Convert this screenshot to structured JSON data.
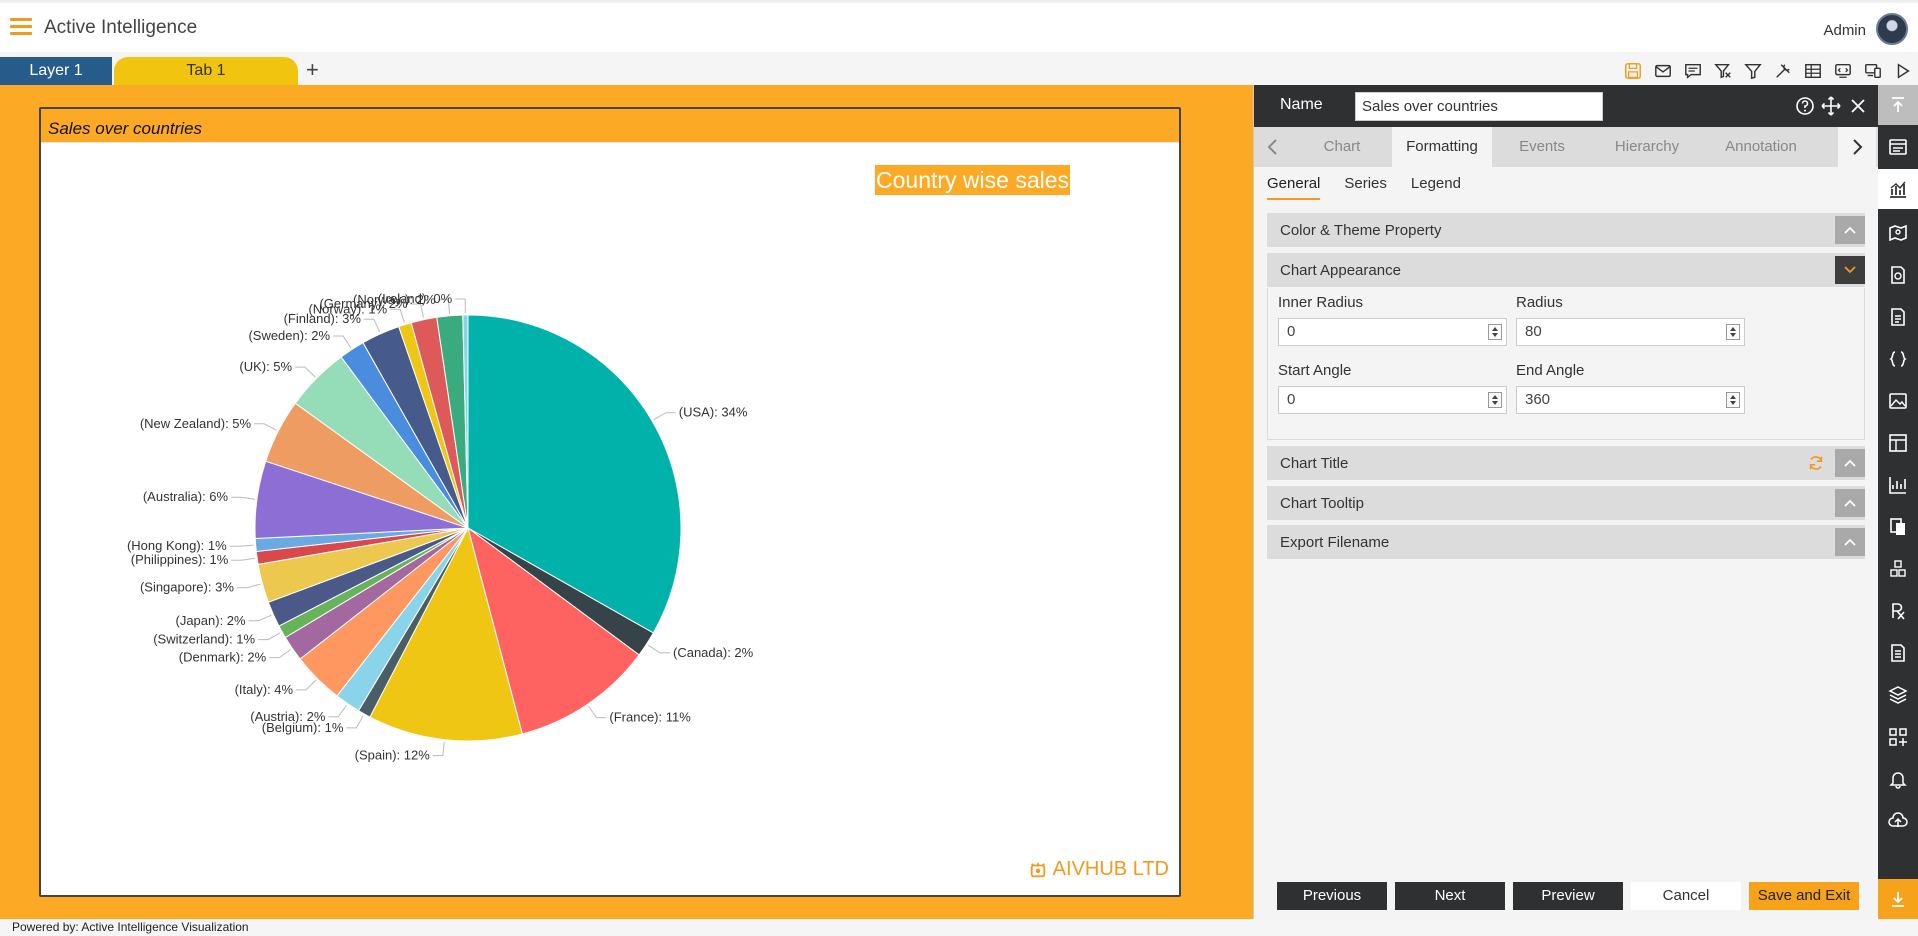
{
  "app": {
    "title": "Active Intelligence",
    "user": "Admin"
  },
  "tabs": {
    "layer": "Layer 1",
    "sheet": "Tab 1",
    "add": "+"
  },
  "toolbar_icons": [
    "save-icon",
    "mail-icon",
    "comment-icon",
    "clear-filter-icon",
    "filter-icon",
    "tools-icon",
    "table-icon",
    "embed-icon",
    "devices-icon",
    "play-icon"
  ],
  "card": {
    "header": "Sales over countries",
    "chart_title": "Country wise sales",
    "brand": "AIVHUB LTD"
  },
  "chart_data": {
    "type": "pie",
    "title": "Country wise sales",
    "slices": [
      {
        "label": "(USA): 34%",
        "value": 34,
        "color": "#00b2a9"
      },
      {
        "label": "(Canada): 2%",
        "value": 2,
        "color": "#36444a"
      },
      {
        "label": "(France): 11%",
        "value": 11,
        "color": "#fe6361"
      },
      {
        "label": "(Spain): 12%",
        "value": 12,
        "color": "#f0c614"
      },
      {
        "label": "(Belgium): 1%",
        "value": 1,
        "color": "#4b5e66"
      },
      {
        "label": "(Austria): 2%",
        "value": 2,
        "color": "#8ad4ea"
      },
      {
        "label": "(Italy): 4%",
        "value": 4,
        "color": "#fe9860"
      },
      {
        "label": "(Denmark): 2%",
        "value": 2,
        "color": "#a3689f"
      },
      {
        "label": "(Switzerland): 1%",
        "value": 1,
        "color": "#67b359"
      },
      {
        "label": "(Japan): 2%",
        "value": 2,
        "color": "#4a5987"
      },
      {
        "label": "(Singapore): 3%",
        "value": 3,
        "color": "#ecc84e"
      },
      {
        "label": "(Philippines): 1%",
        "value": 1,
        "color": "#d9484c"
      },
      {
        "label": "(Hong Kong): 1%",
        "value": 1,
        "color": "#6ba9e2"
      },
      {
        "label": "(Australia): 6%",
        "value": 6,
        "color": "#8c6ed4"
      },
      {
        "label": "(New Zealand): 5%",
        "value": 5,
        "color": "#ee9c61"
      },
      {
        "label": "(UK): 5%",
        "value": 5,
        "color": "#95dcb8"
      },
      {
        "label": "(Sweden): 2%",
        "value": 2,
        "color": "#4a8ddf"
      },
      {
        "label": "(Finland): 3%",
        "value": 3,
        "color": "#465a8c"
      },
      {
        "label": "(Norway): 1%",
        "value": 1,
        "color": "#f0c614"
      },
      {
        "label": "(Germany): 2%",
        "value": 2,
        "color": "#de5a5a"
      },
      {
        "label": "(Norway ): 2%",
        "value": 2,
        "color": "#3aab7e"
      },
      {
        "label": "(Ireland): 0%",
        "value": 0.4,
        "color": "#8ad4ea"
      }
    ]
  },
  "panel": {
    "name_label": "Name",
    "name_value": "Sales over countries",
    "tabs": [
      "Chart",
      "Formatting",
      "Events",
      "Hierarchy",
      "Annotation"
    ],
    "active_tab": "Formatting",
    "subtabs": [
      "General",
      "Series",
      "Legend"
    ],
    "sections": {
      "color_theme": "Color & Theme Property",
      "appearance": "Chart Appearance",
      "title": "Chart Title",
      "tooltip": "Chart Tooltip",
      "export": "Export Filename"
    },
    "fields": {
      "inner_radius_label": "Inner Radius",
      "inner_radius": "0",
      "radius_label": "Radius",
      "radius": "80",
      "start_angle_label": "Start Angle",
      "start_angle": "0",
      "end_angle_label": "End Angle",
      "end_angle": "360"
    },
    "buttons": {
      "previous": "Previous",
      "next": "Next",
      "preview": "Preview",
      "cancel": "Cancel",
      "save_exit": "Save and Exit"
    }
  },
  "status": "Powered by: Active Intelligence Visualization",
  "accent": "#f29a1b"
}
